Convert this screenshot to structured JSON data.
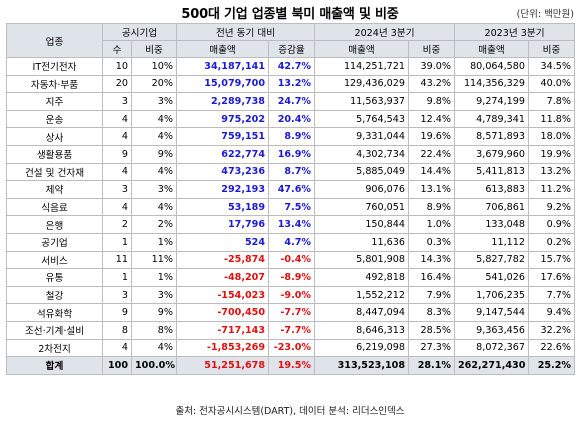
{
  "title": "500대 기업 업종별 북미 매출액 및 비중",
  "unit": "(단위: 백만원)",
  "headers": {
    "industry": "업종",
    "group_public": "공시기업",
    "group_yoy": "전년 동기 대비",
    "group_2024": "2024년 3분기",
    "group_2023": "2023년 3분기",
    "count": "수",
    "share": "비중",
    "sales": "매출액",
    "change_rate": "증감율"
  },
  "rows": [
    {
      "name": "IT전기전자",
      "count": "10",
      "share": "10%",
      "diff": "34,187,141",
      "rate": "42.7%",
      "s2024": "114,251,721",
      "p2024": "39.0%",
      "s2023": "80,064,580",
      "p2023": "34.5%",
      "sign": "pos"
    },
    {
      "name": "자동차·부품",
      "count": "20",
      "share": "20%",
      "diff": "15,079,700",
      "rate": "13.2%",
      "s2024": "129,436,029",
      "p2024": "43.2%",
      "s2023": "114,356,329",
      "p2023": "40.0%",
      "sign": "pos"
    },
    {
      "name": "지주",
      "count": "3",
      "share": "3%",
      "diff": "2,289,738",
      "rate": "24.7%",
      "s2024": "11,563,937",
      "p2024": "9.8%",
      "s2023": "9,274,199",
      "p2023": "7.8%",
      "sign": "pos"
    },
    {
      "name": "운송",
      "count": "4",
      "share": "4%",
      "diff": "975,202",
      "rate": "20.4%",
      "s2024": "5,764,543",
      "p2024": "12.4%",
      "s2023": "4,789,341",
      "p2023": "11.8%",
      "sign": "pos"
    },
    {
      "name": "상사",
      "count": "4",
      "share": "4%",
      "diff": "759,151",
      "rate": "8.9%",
      "s2024": "9,331,044",
      "p2024": "19.6%",
      "s2023": "8,571,893",
      "p2023": "18.0%",
      "sign": "pos"
    },
    {
      "name": "생활용품",
      "count": "9",
      "share": "9%",
      "diff": "622,774",
      "rate": "16.9%",
      "s2024": "4,302,734",
      "p2024": "22.4%",
      "s2023": "3,679,960",
      "p2023": "19.9%",
      "sign": "pos"
    },
    {
      "name": "건설 및 건자재",
      "count": "4",
      "share": "4%",
      "diff": "473,236",
      "rate": "8.7%",
      "s2024": "5,885,049",
      "p2024": "14.4%",
      "s2023": "5,411,813",
      "p2023": "13.2%",
      "sign": "pos"
    },
    {
      "name": "제약",
      "count": "3",
      "share": "3%",
      "diff": "292,193",
      "rate": "47.6%",
      "s2024": "906,076",
      "p2024": "13.1%",
      "s2023": "613,883",
      "p2023": "11.2%",
      "sign": "pos"
    },
    {
      "name": "식음료",
      "count": "4",
      "share": "4%",
      "diff": "53,189",
      "rate": "7.5%",
      "s2024": "760,051",
      "p2024": "8.9%",
      "s2023": "706,861",
      "p2023": "9.2%",
      "sign": "pos"
    },
    {
      "name": "은행",
      "count": "2",
      "share": "2%",
      "diff": "17,796",
      "rate": "13.4%",
      "s2024": "150,844",
      "p2024": "1.0%",
      "s2023": "133,048",
      "p2023": "0.9%",
      "sign": "pos"
    },
    {
      "name": "공기업",
      "count": "1",
      "share": "1%",
      "diff": "524",
      "rate": "4.7%",
      "s2024": "11,636",
      "p2024": "0.3%",
      "s2023": "11,112",
      "p2023": "0.2%",
      "sign": "pos"
    },
    {
      "name": "서비스",
      "count": "11",
      "share": "11%",
      "diff": "-25,874",
      "rate": "-0.4%",
      "s2024": "5,801,908",
      "p2024": "14.3%",
      "s2023": "5,827,782",
      "p2023": "15.7%",
      "sign": "neg"
    },
    {
      "name": "유통",
      "count": "1",
      "share": "1%",
      "diff": "-48,207",
      "rate": "-8.9%",
      "s2024": "492,818",
      "p2024": "16.4%",
      "s2023": "541,026",
      "p2023": "17.6%",
      "sign": "neg"
    },
    {
      "name": "철강",
      "count": "3",
      "share": "3%",
      "diff": "-154,023",
      "rate": "-9.0%",
      "s2024": "1,552,212",
      "p2024": "7.9%",
      "s2023": "1,706,235",
      "p2023": "7.7%",
      "sign": "neg"
    },
    {
      "name": "석유화학",
      "count": "9",
      "share": "9%",
      "diff": "-700,450",
      "rate": "-7.7%",
      "s2024": "8,447,094",
      "p2024": "8.3%",
      "s2023": "9,147,544",
      "p2023": "9.4%",
      "sign": "neg"
    },
    {
      "name": "조선·기계·설비",
      "count": "8",
      "share": "8%",
      "diff": "-717,143",
      "rate": "-7.7%",
      "s2024": "8,646,313",
      "p2024": "28.5%",
      "s2023": "9,363,456",
      "p2023": "32.2%",
      "sign": "neg"
    },
    {
      "name": "2차전지",
      "count": "4",
      "share": "4%",
      "diff": "-1,853,269",
      "rate": "-23.0%",
      "s2024": "6,219,098",
      "p2024": "27.3%",
      "s2023": "8,072,367",
      "p2023": "22.6%",
      "sign": "neg"
    }
  ],
  "total": {
    "name": "합계",
    "count": "100",
    "share": "100.0%",
    "diff": "51,251,678",
    "rate": "19.5%",
    "s2024": "313,523,108",
    "p2024": "28.1%",
    "s2023": "262,271,430",
    "p2023": "25.2%"
  },
  "source": "출처: 전자공시시스템(DART), 데이터 분석: 리더스인덱스",
  "colors": {
    "header_bg": "#dfe3ea",
    "positive": "#1a1ad6",
    "negative": "#e01010",
    "border": "#bdbdbd"
  }
}
